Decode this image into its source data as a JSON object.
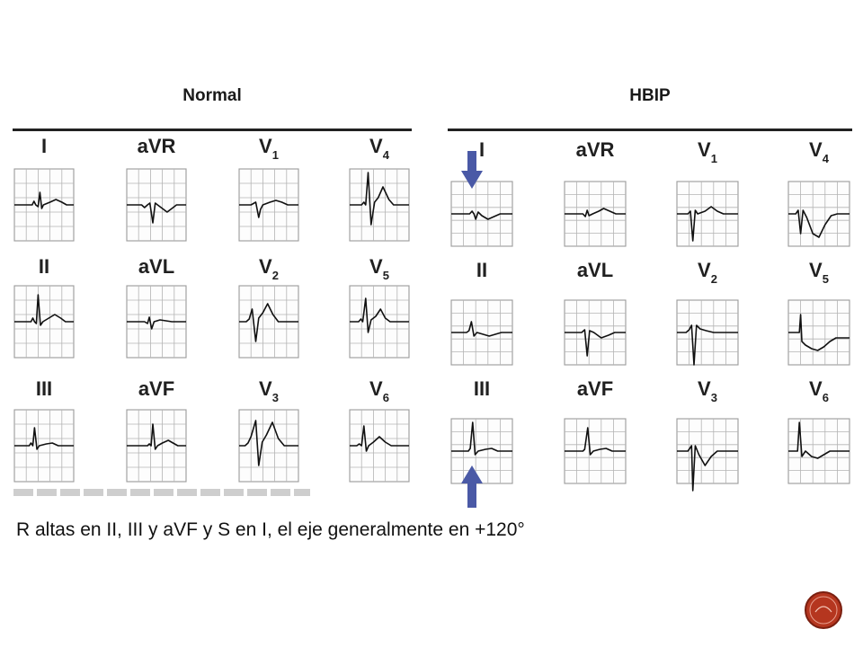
{
  "panels": [
    {
      "id": "normal",
      "title": "Normal",
      "leads": [
        {
          "label": "I",
          "sub": ""
        },
        {
          "label": "aVR",
          "sub": ""
        },
        {
          "label": "V",
          "sub": "1"
        },
        {
          "label": "V",
          "sub": "4"
        },
        {
          "label": "II",
          "sub": ""
        },
        {
          "label": "aVL",
          "sub": ""
        },
        {
          "label": "V",
          "sub": "2"
        },
        {
          "label": "V",
          "sub": "5"
        },
        {
          "label": "III",
          "sub": ""
        },
        {
          "label": "aVF",
          "sub": ""
        },
        {
          "label": "V",
          "sub": "3"
        },
        {
          "label": "V",
          "sub": "6"
        }
      ]
    },
    {
      "id": "hbip",
      "title": "HBIP",
      "leads": [
        {
          "label": "I",
          "sub": ""
        },
        {
          "label": "aVR",
          "sub": ""
        },
        {
          "label": "V",
          "sub": "1"
        },
        {
          "label": "V",
          "sub": "4"
        },
        {
          "label": "II",
          "sub": ""
        },
        {
          "label": "aVL",
          "sub": ""
        },
        {
          "label": "V",
          "sub": "2"
        },
        {
          "label": "V",
          "sub": "5"
        },
        {
          "label": "III",
          "sub": ""
        },
        {
          "label": "aVF",
          "sub": ""
        },
        {
          "label": "V",
          "sub": "3"
        },
        {
          "label": "V",
          "sub": "6"
        }
      ]
    }
  ],
  "caption": {
    "text": "R altas en II, III y aVF y S en I, el eje generalmente en +120°"
  },
  "colors": {
    "grid": "#9a9a9a",
    "trace": "#111111",
    "arrow": "#4a59a6",
    "logo": "#b5361f"
  },
  "icons": {
    "arrow_down": "arrow-down-icon",
    "arrow_up": "arrow-up-icon",
    "logo": "circle-logo-icon"
  }
}
